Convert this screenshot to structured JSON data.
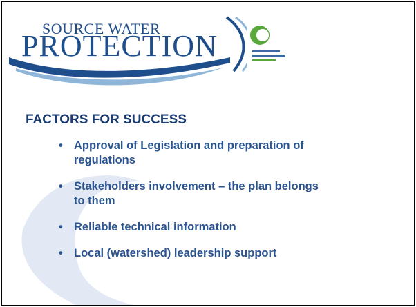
{
  "header": {
    "logo_line1": "SOURCE WATER",
    "logo_line2": "PROTECTION"
  },
  "title": "FACTORS FOR SUCCESS",
  "bullets": [
    "Approval of Legislation and preparation of regulations",
    "Stakeholders involvement – the plan belongs to them",
    "Reliable technical information",
    "Local (watershed) leadership support"
  ]
}
